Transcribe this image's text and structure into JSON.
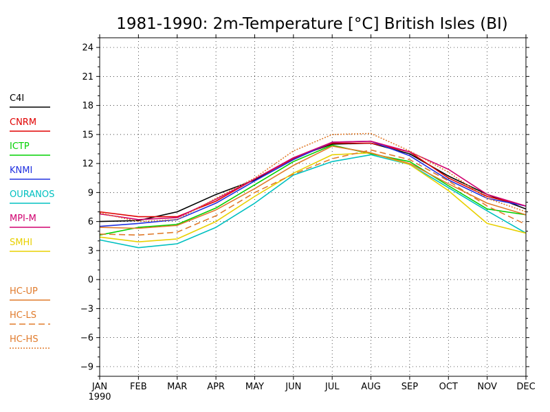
{
  "chart_data": {
    "type": "line",
    "title": "1981-1990: 2m-Temperature [°C] British Isles (BI)",
    "xlabel": "",
    "ylabel": "",
    "categories": [
      "JAN",
      "FEB",
      "MAR",
      "APR",
      "MAY",
      "JUN",
      "JUL",
      "AUG",
      "SEP",
      "OCT",
      "NOV",
      "DEC"
    ],
    "year_label": "1990",
    "ylim": [
      -10,
      25
    ],
    "yticks": [
      -9,
      -6,
      -3,
      0,
      3,
      6,
      9,
      12,
      15,
      18,
      21,
      24
    ],
    "grid": true,
    "legend_position": "left",
    "series": [
      {
        "name": "C4I",
        "color": "#000000",
        "dash": "solid",
        "values": [
          6.0,
          6.1,
          7.0,
          8.8,
          10.3,
          12.6,
          14.0,
          14.1,
          13.0,
          10.7,
          8.8,
          7.3
        ]
      },
      {
        "name": "CNRM",
        "color": "#e00000",
        "dash": "solid",
        "values": [
          7.0,
          6.5,
          6.5,
          8.1,
          10.4,
          12.5,
          14.1,
          14.1,
          13.2,
          10.5,
          8.6,
          7.6
        ]
      },
      {
        "name": "ICTP",
        "color": "#00d000",
        "dash": "solid",
        "values": [
          4.6,
          5.4,
          5.7,
          7.4,
          9.8,
          12.2,
          13.9,
          13.0,
          12.2,
          9.7,
          7.3,
          6.7
        ]
      },
      {
        "name": "KNMI",
        "color": "#2030e0",
        "dash": "solid",
        "values": [
          5.5,
          5.8,
          6.2,
          7.9,
          10.2,
          12.4,
          14.2,
          14.3,
          12.8,
          10.3,
          8.4,
          7.6
        ]
      },
      {
        "name": "OURANOS",
        "color": "#00c0c0",
        "dash": "solid",
        "values": [
          4.1,
          3.3,
          3.7,
          5.4,
          7.9,
          10.8,
          12.2,
          12.9,
          11.9,
          9.5,
          7.1,
          4.8
        ]
      },
      {
        "name": "MPI-M",
        "color": "#d0006f",
        "dash": "solid",
        "values": [
          6.8,
          6.2,
          6.4,
          8.3,
          10.4,
          12.6,
          14.2,
          14.3,
          13.2,
          11.4,
          8.8,
          7.6
        ]
      },
      {
        "name": "SMHI",
        "color": "#e8d000",
        "dash": "solid",
        "values": [
          4.4,
          3.9,
          4.2,
          6.0,
          8.6,
          11.0,
          12.9,
          13.1,
          11.9,
          9.2,
          5.8,
          4.8
        ]
      },
      {
        "name": "HC-UP",
        "color": "#e07a2a",
        "dash": "solid",
        "values": [
          5.4,
          5.3,
          5.6,
          7.2,
          9.4,
          11.8,
          13.8,
          13.1,
          12.0,
          9.9,
          7.9,
          6.7
        ]
      },
      {
        "name": "HC-LS",
        "color": "#e07a2a",
        "dash": "dashed",
        "values": [
          4.7,
          4.6,
          4.9,
          6.6,
          9.0,
          10.9,
          12.5,
          13.4,
          12.4,
          10.2,
          7.6,
          5.7
        ]
      },
      {
        "name": "HC-HS",
        "color": "#e07a2a",
        "dash": "dotted",
        "values": [
          6.9,
          6.0,
          6.2,
          8.4,
          10.5,
          13.3,
          15.0,
          15.1,
          13.3,
          11.1,
          8.4,
          7.0
        ]
      }
    ]
  }
}
